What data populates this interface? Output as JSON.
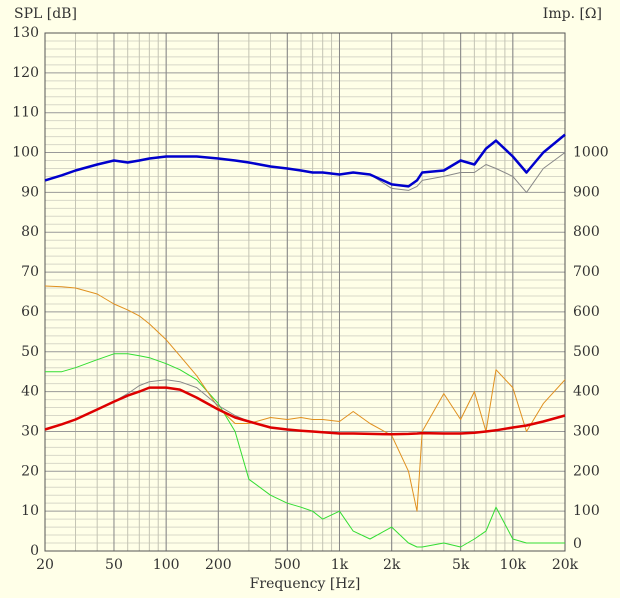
{
  "chart_data": {
    "type": "line",
    "log_x": true,
    "grid": true,
    "minor_grid": true,
    "y_label": "SPL [dB]",
    "y2_label": "Imp. [Ω]",
    "x_label": "Frequency [Hz]",
    "xlim": [
      20,
      20000
    ],
    "xticks": [
      20,
      50,
      100,
      200,
      500,
      {
        "value": 1000,
        "label": "1k"
      },
      {
        "value": 2000,
        "label": "2k"
      },
      {
        "value": 5000,
        "label": "5k"
      },
      {
        "value": 10000,
        "label": "10k"
      },
      {
        "value": 20000,
        "label": "20k"
      }
    ],
    "ylim": [
      0,
      130
    ],
    "yticks": [
      0,
      10,
      20,
      30,
      40,
      50,
      60,
      70,
      80,
      90,
      100,
      110,
      120,
      130
    ],
    "y2lim": [
      0,
      1300
    ],
    "y2ticks": [
      0,
      100,
      200,
      300,
      400,
      500,
      600,
      700,
      800,
      900,
      1000
    ],
    "x": [
      20,
      25,
      30,
      40,
      50,
      60,
      70,
      80,
      100,
      120,
      150,
      200,
      250,
      300,
      400,
      500,
      600,
      700,
      800,
      1000,
      1200,
      1500,
      2000,
      2500,
      2800,
      3000,
      4000,
      5000,
      6000,
      7000,
      8000,
      10000,
      12000,
      15000,
      20000
    ],
    "series": [
      {
        "color": "#33dd33",
        "width": 1,
        "values": [
          45,
          45,
          46,
          48,
          49.5,
          49.5,
          49,
          48.5,
          47,
          45.5,
          43,
          37,
          30,
          18,
          14,
          12,
          11,
          10,
          8,
          10,
          5,
          3,
          6,
          2,
          1,
          1,
          2,
          1,
          3,
          5,
          11,
          3,
          2,
          2,
          2
        ]
      },
      {
        "color": "#e0901f",
        "width": 1,
        "values": [
          66.5,
          66.3,
          66,
          64.5,
          62,
          60.5,
          59,
          57,
          53,
          49,
          44,
          36,
          32,
          32,
          33.5,
          33,
          33.5,
          33,
          33,
          32.5,
          35,
          32,
          29,
          20,
          10,
          30,
          39.5,
          33,
          40,
          30,
          45.5,
          41,
          30,
          37,
          43
        ]
      },
      {
        "color": "#888888",
        "width": 1,
        "values": [
          30.5,
          31.8,
          33,
          35.5,
          37.5,
          39.5,
          41.5,
          42.5,
          43,
          42.5,
          41,
          36.5,
          34,
          32.5,
          31,
          30.5,
          30.2,
          30,
          29.8,
          29.5,
          29.5,
          29.4,
          29.3,
          29.4,
          29.5,
          29.6,
          29.5,
          29.5,
          29.7,
          30,
          30.3,
          31,
          31.5,
          32.5,
          34
        ]
      },
      {
        "color": "#dd0000",
        "width": 2.5,
        "values": [
          30.5,
          31.8,
          33,
          35.5,
          37.5,
          39,
          40,
          41,
          41,
          40.5,
          38.5,
          35.5,
          33.5,
          32.5,
          31,
          30.5,
          30.2,
          30,
          29.8,
          29.5,
          29.5,
          29.4,
          29.3,
          29.4,
          29.5,
          29.6,
          29.5,
          29.5,
          29.7,
          30,
          30.3,
          31,
          31.5,
          32.5,
          34
        ]
      },
      {
        "color": "#888888",
        "width": 1,
        "values": [
          93,
          94.3,
          95.5,
          97,
          98,
          97.5,
          98,
          98.5,
          99,
          99,
          99,
          98.5,
          98,
          97.5,
          96.5,
          96,
          95.5,
          95,
          95,
          94.5,
          95,
          94.5,
          91,
          90.5,
          91.5,
          93,
          94,
          95,
          95,
          97,
          96,
          94,
          90,
          96,
          100
        ]
      },
      {
        "color": "#0000cc",
        "width": 2.5,
        "values": [
          93,
          94.3,
          95.5,
          97,
          98,
          97.5,
          98,
          98.5,
          99,
          99,
          99,
          98.5,
          98,
          97.5,
          96.5,
          96,
          95.5,
          95,
          95,
          94.5,
          95,
          94.5,
          92,
          91.5,
          93,
          95,
          95.5,
          98,
          97,
          101,
          103,
          99,
          95,
          100,
          104.5
        ]
      }
    ]
  }
}
